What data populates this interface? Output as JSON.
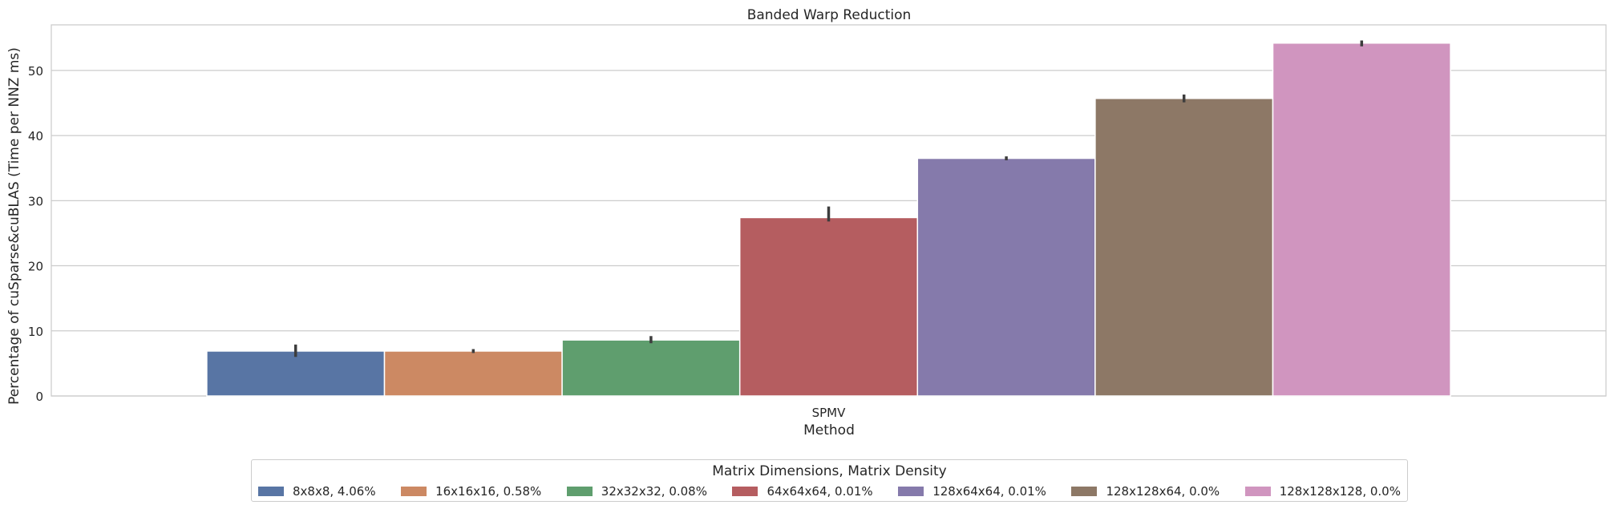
{
  "chart_data": {
    "type": "bar",
    "title": "Banded Warp Reduction",
    "xlabel": "Method",
    "ylabel": "Percentage of cuSparse&cuBLAS (Time per NNZ ms)",
    "categories": [
      "SPMV"
    ],
    "ylim": [
      0,
      57
    ],
    "yticks": [
      0,
      10,
      20,
      30,
      40,
      50
    ],
    "grid": true,
    "legend_title": "Matrix Dimensions, Matrix Density",
    "legend_position": "bottom-center",
    "series": [
      {
        "name": "8x8x8, 4.06%",
        "values": [
          6.9
        ],
        "err_low": [
          6.0
        ],
        "err_high": [
          7.9
        ],
        "color": "#5875a4"
      },
      {
        "name": "16x16x16, 0.58%",
        "values": [
          6.9
        ],
        "err_low": [
          6.6
        ],
        "err_high": [
          7.2
        ],
        "color": "#cc8963"
      },
      {
        "name": "32x32x32, 0.08%",
        "values": [
          8.6
        ],
        "err_low": [
          8.1
        ],
        "err_high": [
          9.2
        ],
        "color": "#5f9e6e"
      },
      {
        "name": "64x64x64, 0.01%",
        "values": [
          27.4
        ],
        "err_low": [
          26.8
        ],
        "err_high": [
          29.1
        ],
        "color": "#b55d60"
      },
      {
        "name": "128x64x64, 0.01%",
        "values": [
          36.5
        ],
        "err_low": [
          36.2
        ],
        "err_high": [
          36.8
        ],
        "color": "#857aab"
      },
      {
        "name": "128x128x64, 0.0%",
        "values": [
          45.7
        ],
        "err_low": [
          45.1
        ],
        "err_high": [
          46.3
        ],
        "color": "#8d7866"
      },
      {
        "name": "128x128x128, 0.0%",
        "values": [
          54.2
        ],
        "err_low": [
          53.7
        ],
        "err_high": [
          54.6
        ],
        "color": "#d095bf"
      }
    ]
  }
}
